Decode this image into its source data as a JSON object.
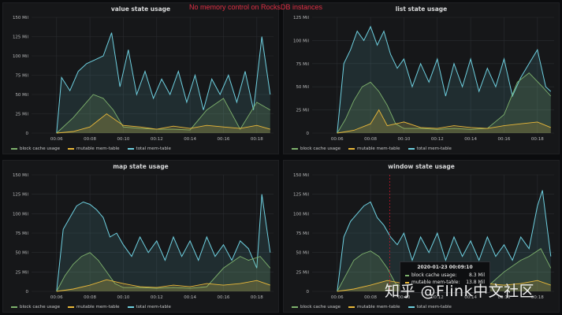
{
  "banner": "No memory control on RocksDB instances",
  "colors": {
    "block_cache": "#7eb26d",
    "mutable": "#eab839",
    "total": "#6ed0e0",
    "grid": "#2a2c30",
    "banner": "#e02f44"
  },
  "legend": [
    "block cache usage",
    "mutable mem-table",
    "total mem-table"
  ],
  "tooltip": {
    "title": "2020-01-23 00:09:10",
    "rows": [
      {
        "label": "block cache usage:",
        "value": "8.3 Mil"
      },
      {
        "label": "mutable mem-table:",
        "value": "13.8 Mil"
      }
    ]
  },
  "watermark": "知乎 @Flink中文社区",
  "chart_data": [
    {
      "type": "line",
      "title": "value state usage",
      "yticks": [
        "0",
        "25 Mil",
        "50 Mil",
        "75 Mil",
        "100 Mil",
        "125 Mil",
        "150 Mil"
      ],
      "xticks": [
        "00:06",
        "00:08",
        "00:10",
        "00:12",
        "00:14",
        "00:16",
        "00:18"
      ],
      "ylim": [
        0,
        150
      ],
      "xlim": [
        4.5,
        19
      ],
      "series": [
        {
          "name": "block cache usage",
          "x": [
            6,
            7,
            7.6,
            8.2,
            8.8,
            9.4,
            10,
            11,
            12,
            13,
            14,
            15,
            16,
            17,
            18,
            18.8
          ],
          "values": [
            0,
            20,
            35,
            50,
            45,
            30,
            8,
            6,
            5,
            5,
            4,
            30,
            45,
            5,
            40,
            30
          ]
        },
        {
          "name": "mutable mem-table",
          "x": [
            6,
            7,
            8,
            9,
            10,
            11,
            12,
            13,
            14,
            15,
            16,
            17,
            18,
            18.8
          ],
          "values": [
            0,
            2,
            8,
            25,
            10,
            8,
            5,
            9,
            6,
            10,
            8,
            6,
            10,
            5
          ]
        },
        {
          "name": "total mem-table",
          "x": [
            6,
            6.3,
            6.8,
            7.3,
            7.8,
            8.3,
            8.8,
            9.3,
            9.8,
            10.3,
            10.8,
            11.3,
            11.8,
            12.3,
            12.8,
            13.3,
            13.8,
            14.3,
            14.8,
            15.3,
            15.8,
            16.3,
            16.8,
            17.3,
            17.8,
            18.3,
            18.8
          ],
          "values": [
            0,
            72,
            55,
            80,
            90,
            95,
            100,
            130,
            60,
            108,
            50,
            80,
            45,
            70,
            50,
            80,
            40,
            75,
            30,
            70,
            50,
            75,
            40,
            80,
            30,
            125,
            50
          ]
        }
      ]
    },
    {
      "type": "line",
      "title": "list state usage",
      "yticks": [
        "0",
        "25 Mil",
        "50 Mil",
        "75 Mil",
        "100 Mil",
        "125 Mil"
      ],
      "xticks": [
        "00:06",
        "00:08",
        "00:10",
        "00:12",
        "00:14",
        "00:16",
        "00:18"
      ],
      "ylim": [
        0,
        125
      ],
      "xlim": [
        4.5,
        19
      ],
      "series": [
        {
          "name": "block cache usage",
          "x": [
            6,
            6.5,
            7,
            7.5,
            8,
            8.5,
            9,
            9.5,
            10,
            11,
            12,
            13,
            14,
            15,
            16,
            16.8,
            17.5,
            18.3,
            18.8
          ],
          "values": [
            0,
            15,
            35,
            50,
            55,
            45,
            30,
            10,
            5,
            5,
            4,
            5,
            4,
            5,
            20,
            55,
            65,
            50,
            40
          ]
        },
        {
          "name": "mutable mem-table",
          "x": [
            6,
            7,
            8,
            8.5,
            9,
            10,
            11,
            12,
            13,
            14,
            15,
            16,
            17,
            18,
            18.8
          ],
          "values": [
            0,
            3,
            10,
            25,
            8,
            12,
            6,
            5,
            8,
            6,
            5,
            8,
            10,
            12,
            6
          ]
        },
        {
          "name": "total mem-table",
          "x": [
            6,
            6.4,
            6.8,
            7.2,
            7.6,
            8,
            8.4,
            8.8,
            9.2,
            9.6,
            10,
            10.5,
            11,
            11.5,
            12,
            12.5,
            13,
            13.5,
            14,
            14.5,
            15,
            15.5,
            16,
            16.5,
            17,
            17.5,
            18,
            18.5,
            18.8
          ],
          "values": [
            0,
            75,
            90,
            110,
            100,
            115,
            95,
            110,
            85,
            70,
            80,
            50,
            75,
            55,
            80,
            40,
            75,
            50,
            80,
            45,
            70,
            50,
            80,
            40,
            60,
            75,
            90,
            50,
            45
          ]
        }
      ]
    },
    {
      "type": "line",
      "title": "map state usage",
      "yticks": [
        "0",
        "25 Mil",
        "50 Mil",
        "75 Mil",
        "100 Mil",
        "125 Mil",
        "150 Mil"
      ],
      "xticks": [
        "00:06",
        "00:08",
        "00:10",
        "00:12",
        "00:14",
        "00:16",
        "00:18"
      ],
      "ylim": [
        0,
        150
      ],
      "xlim": [
        4.5,
        19
      ],
      "series": [
        {
          "name": "block cache usage",
          "x": [
            6,
            6.5,
            7,
            7.5,
            8,
            8.5,
            9,
            9.5,
            10,
            11,
            12,
            13,
            14,
            15,
            16,
            17,
            17.5,
            18.2,
            18.8
          ],
          "values": [
            0,
            20,
            35,
            45,
            50,
            40,
            25,
            10,
            5,
            5,
            4,
            5,
            4,
            6,
            30,
            45,
            40,
            45,
            30
          ]
        },
        {
          "name": "mutable mem-table",
          "x": [
            6,
            7,
            8,
            9,
            10,
            11,
            12,
            13,
            14,
            15,
            16,
            17,
            18,
            18.8
          ],
          "values": [
            0,
            3,
            8,
            15,
            10,
            6,
            5,
            8,
            6,
            10,
            8,
            10,
            14,
            8
          ]
        },
        {
          "name": "total mem-table",
          "x": [
            6,
            6.4,
            6.8,
            7.2,
            7.6,
            8,
            8.4,
            8.8,
            9.2,
            9.6,
            10,
            10.5,
            11,
            11.5,
            12,
            12.5,
            13,
            13.5,
            14,
            14.5,
            15,
            15.5,
            16,
            16.5,
            17,
            17.5,
            18,
            18.3,
            18.8
          ],
          "values": [
            0,
            80,
            95,
            110,
            115,
            112,
            105,
            95,
            70,
            75,
            60,
            45,
            70,
            50,
            65,
            40,
            70,
            45,
            65,
            40,
            70,
            45,
            60,
            40,
            65,
            55,
            30,
            125,
            50
          ]
        }
      ]
    },
    {
      "type": "line",
      "title": "window state usage",
      "yticks": [
        "0",
        "25 Mil",
        "50 Mil",
        "75 Mil",
        "100 Mil",
        "125 Mil",
        "150 Mil"
      ],
      "xticks": [
        "00:06",
        "00:08",
        "00:10",
        "00:12",
        "00:14",
        "00:16",
        "00:18"
      ],
      "ylim": [
        0,
        150
      ],
      "xlim": [
        4.5,
        19
      ],
      "cursor_x": 9.15,
      "series": [
        {
          "name": "block cache usage",
          "x": [
            6,
            6.5,
            7,
            7.5,
            8,
            8.5,
            9,
            9.5,
            10,
            11,
            12,
            13,
            14,
            15,
            16,
            17,
            17.5,
            18.2,
            18.8
          ],
          "values": [
            0,
            20,
            40,
            48,
            52,
            45,
            30,
            10,
            5,
            5,
            4,
            5,
            4,
            6,
            25,
            40,
            45,
            55,
            30
          ]
        },
        {
          "name": "mutable mem-table",
          "x": [
            6,
            7,
            8,
            9,
            10,
            11,
            12,
            13,
            14,
            15,
            16,
            17,
            18,
            18.8
          ],
          "values": [
            0,
            3,
            8,
            14,
            10,
            6,
            5,
            8,
            6,
            10,
            8,
            10,
            14,
            8
          ]
        },
        {
          "name": "total mem-table",
          "x": [
            6,
            6.4,
            6.8,
            7.2,
            7.6,
            8,
            8.4,
            8.8,
            9.2,
            9.6,
            10,
            10.5,
            11,
            11.5,
            12,
            12.5,
            13,
            13.5,
            14,
            14.5,
            15,
            15.5,
            16,
            16.5,
            17,
            17.5,
            18,
            18.3,
            18.8
          ],
          "values": [
            0,
            70,
            90,
            100,
            110,
            115,
            95,
            85,
            70,
            60,
            75,
            40,
            70,
            50,
            75,
            40,
            70,
            45,
            65,
            40,
            70,
            45,
            60,
            40,
            70,
            55,
            110,
            130,
            45
          ]
        }
      ]
    }
  ]
}
